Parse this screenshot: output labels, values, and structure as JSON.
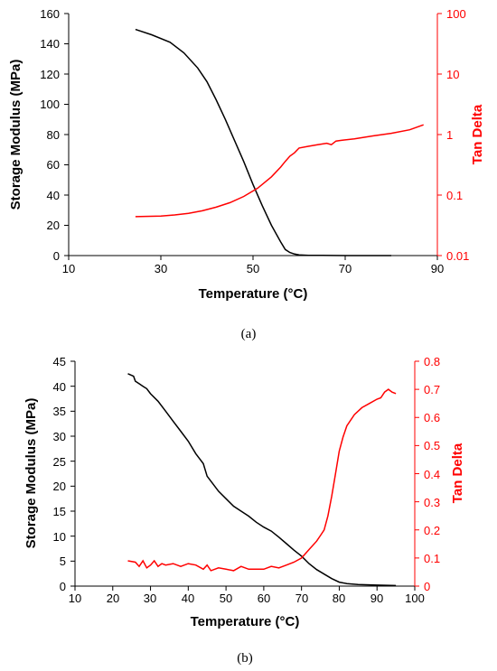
{
  "chart_data": [
    {
      "type": "line",
      "caption": "(a)",
      "xlabel": "Temperature (°C)",
      "ylabel": "Storage Modulus (MPa)",
      "y2label": "Tan Delta",
      "xlim": [
        10,
        90
      ],
      "ylim": [
        0,
        160
      ],
      "y2lim": [
        0.01,
        100
      ],
      "y2scale": "log",
      "xticks": [
        "10",
        "30",
        "50",
        "70",
        "90"
      ],
      "yticks": [
        "0",
        "20",
        "40",
        "60",
        "80",
        "100",
        "120",
        "140",
        "160"
      ],
      "y2ticks": [
        "0.01",
        "0.1",
        "1",
        "10",
        "100"
      ],
      "grid": false,
      "colors": {
        "storage_modulus": "#000000",
        "tan_delta": "#ff0000"
      },
      "series": [
        {
          "axis": "left",
          "x": [
            24.5,
            28,
            32,
            35,
            38,
            40,
            42,
            44,
            46,
            48,
            50,
            52,
            54,
            56,
            57,
            58,
            59,
            60,
            62,
            65,
            70,
            75,
            80
          ],
          "y": [
            149.5,
            146,
            141,
            134,
            124,
            115,
            103,
            90,
            76,
            62,
            47,
            33,
            20,
            9,
            4,
            2,
            1,
            0.5,
            0.2,
            0.1,
            0,
            0,
            0
          ]
        },
        {
          "axis": "right",
          "x": [
            24.5,
            30,
            33,
            36,
            39,
            42,
            45,
            48,
            51,
            54,
            56,
            57,
            58,
            59,
            60,
            62,
            64,
            66,
            67,
            68,
            69,
            72,
            76,
            80,
            84,
            87
          ],
          "y": [
            0.044,
            0.045,
            0.047,
            0.05,
            0.055,
            0.063,
            0.075,
            0.095,
            0.13,
            0.2,
            0.29,
            0.36,
            0.44,
            0.5,
            0.6,
            0.64,
            0.68,
            0.72,
            0.68,
            0.78,
            0.8,
            0.85,
            0.95,
            1.05,
            1.2,
            1.45
          ]
        }
      ]
    },
    {
      "type": "line",
      "caption": "(b)",
      "xlabel": "Temperature (°C)",
      "ylabel": "Storage Modulus (MPa)",
      "y2label": "Tan Delta",
      "xlim": [
        10,
        100
      ],
      "ylim": [
        0,
        45
      ],
      "y2lim": [
        0,
        0.8
      ],
      "xticks": [
        "10",
        "20",
        "30",
        "40",
        "50",
        "60",
        "70",
        "80",
        "90",
        "100"
      ],
      "yticks": [
        "0",
        "5",
        "10",
        "15",
        "20",
        "25",
        "30",
        "35",
        "40",
        "45"
      ],
      "y2ticks": [
        "0",
        "0.1",
        "0.2",
        "0.3",
        "0.4",
        "0.5",
        "0.6",
        "0.7",
        "0.8"
      ],
      "grid": false,
      "colors": {
        "storage_modulus": "#000000",
        "tan_delta": "#ff0000"
      },
      "series": [
        {
          "axis": "left",
          "x": [
            24,
            25.5,
            26,
            27,
            28,
            29,
            30,
            32,
            34,
            36,
            38,
            40,
            42,
            44,
            45,
            46,
            48,
            50,
            52,
            54,
            56,
            58,
            60,
            62,
            64,
            66,
            68,
            70,
            72,
            74,
            76,
            78,
            80,
            82,
            85,
            90,
            95
          ],
          "y": [
            42.5,
            42,
            41,
            40.5,
            40,
            39.5,
            38.5,
            37,
            35,
            33,
            31,
            29,
            26.5,
            24.5,
            22,
            21,
            19,
            17.5,
            16,
            15,
            14,
            12.8,
            11.8,
            11,
            9.8,
            8.5,
            7.2,
            6,
            4.5,
            3.3,
            2.4,
            1.5,
            0.8,
            0.5,
            0.3,
            0.2,
            0.1
          ]
        },
        {
          "axis": "right",
          "x": [
            24,
            26,
            27,
            28,
            29,
            30,
            31,
            32,
            33,
            34,
            36,
            38,
            40,
            42,
            44,
            45,
            46,
            48,
            50,
            52,
            54,
            56,
            58,
            60,
            62,
            64,
            66,
            68,
            70,
            72,
            74,
            75,
            76,
            77,
            78,
            79,
            80,
            81,
            82,
            84,
            86,
            88,
            90,
            91,
            92,
            93,
            94,
            95
          ],
          "y": [
            0.09,
            0.085,
            0.07,
            0.09,
            0.065,
            0.075,
            0.09,
            0.07,
            0.08,
            0.075,
            0.08,
            0.07,
            0.08,
            0.075,
            0.06,
            0.075,
            0.055,
            0.065,
            0.06,
            0.055,
            0.07,
            0.06,
            0.06,
            0.06,
            0.07,
            0.065,
            0.075,
            0.085,
            0.1,
            0.13,
            0.16,
            0.18,
            0.2,
            0.25,
            0.32,
            0.4,
            0.48,
            0.53,
            0.57,
            0.61,
            0.635,
            0.65,
            0.665,
            0.67,
            0.69,
            0.7,
            0.69,
            0.685
          ]
        }
      ]
    }
  ]
}
